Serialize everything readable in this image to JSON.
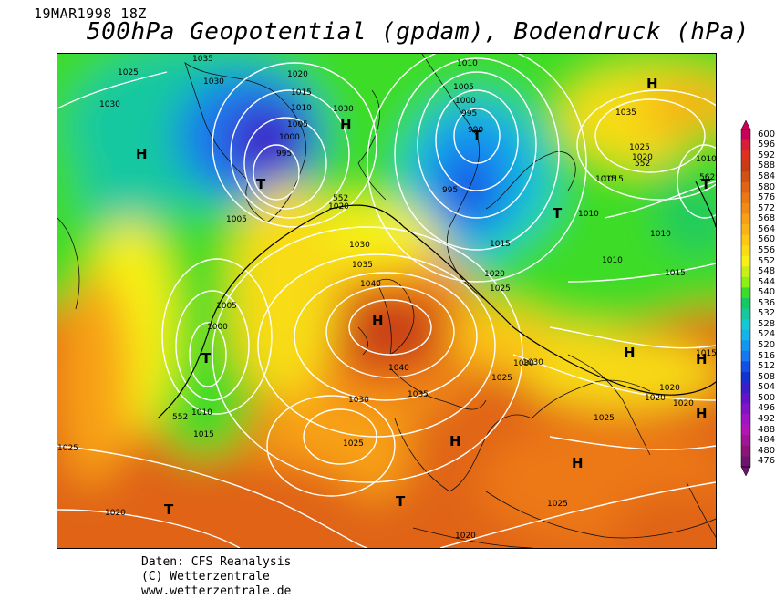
{
  "header": {
    "timestamp": "19MAR1998 18Z",
    "title": "500hPa Geopotential (gpdam), Bodendruck (hPa)"
  },
  "credits": {
    "line1": "Daten: CFS Reanalysis",
    "line2": "(C) Wetterzentrale",
    "line3": "www.wetterzentrale.de"
  },
  "colorbar": {
    "labels": [
      "600",
      "596",
      "592",
      "588",
      "584",
      "580",
      "576",
      "572",
      "568",
      "564",
      "560",
      "556",
      "552",
      "548",
      "544",
      "540",
      "536",
      "532",
      "528",
      "524",
      "520",
      "516",
      "512",
      "508",
      "504",
      "500",
      "496",
      "492",
      "488",
      "484",
      "480",
      "476"
    ],
    "colors": [
      "#c8005a",
      "#d81e3a",
      "#e0301e",
      "#c83c14",
      "#d25014",
      "#e06414",
      "#ec7814",
      "#f08c14",
      "#f8a014",
      "#f8b414",
      "#fcc814",
      "#f8dc14",
      "#f8f014",
      "#c8f014",
      "#8cf014",
      "#3cdc28",
      "#14c864",
      "#14c8a0",
      "#14c8d2",
      "#14b4e6",
      "#1496f0",
      "#1478f0",
      "#1450e6",
      "#1432d2",
      "#3c1ec8",
      "#6414c8",
      "#8214c8",
      "#a014c8",
      "#b414b4",
      "#a01496",
      "#8c1478",
      "#6e146e"
    ]
  },
  "map": {
    "pressure_labels": [
      "1035",
      "1030",
      "1025",
      "1030",
      "1020",
      "1015",
      "1010",
      "1005",
      "1000",
      "995",
      "1030",
      "1005",
      "1020",
      "1030",
      "1035",
      "1040",
      "1040",
      "1035",
      "1030",
      "1005",
      "1000",
      "1010",
      "1015",
      "1025",
      "1020",
      "1010",
      "1005",
      "1000",
      "995",
      "990",
      "995",
      "1015",
      "1020",
      "1025",
      "1030",
      "1025",
      "1020",
      "1015",
      "1010",
      "1010",
      "1015",
      "1035",
      "1025",
      "1020",
      "1010",
      "1015",
      "1025",
      "1020",
      "1025",
      "1020",
      "1010",
      "1015",
      "1025",
      "1030",
      "1020"
    ],
    "contour_labels": [
      "552",
      "552",
      "552",
      "562"
    ],
    "systems": [
      "H",
      "H",
      "H",
      "H",
      "H",
      "H",
      "H",
      "H",
      "H",
      "T",
      "T",
      "T",
      "T",
      "T",
      "T",
      "T"
    ]
  }
}
